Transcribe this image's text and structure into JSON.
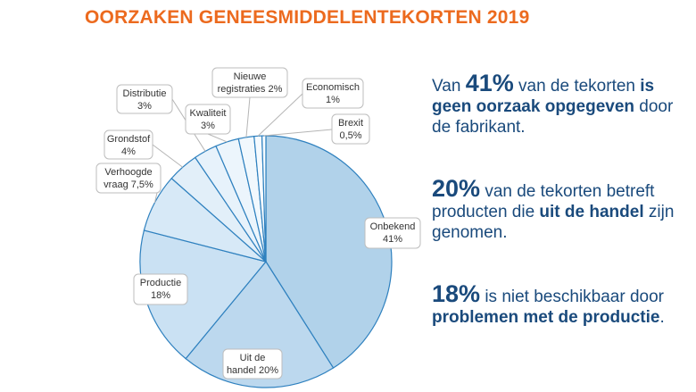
{
  "title": "OORZAKEN GENEESMIDDELENTEKORTEN 2019",
  "chart_data": {
    "type": "pie",
    "slices": [
      {
        "label": "Onbekend",
        "value_label": "41%",
        "value": 41,
        "color": "#b1d2ea"
      },
      {
        "label": "Uit de handel",
        "value_label": "20%",
        "value": 20,
        "color": "#bcd8ee"
      },
      {
        "label": "Productie",
        "value_label": "18%",
        "value": 18,
        "color": "#cae1f3"
      },
      {
        "label": "Verhoogde vraag",
        "value_label": "7,5%",
        "value": 7.5,
        "color": "#d7e9f7"
      },
      {
        "label": "Grondstof",
        "value_label": "4%",
        "value": 4,
        "color": "#e2eff9"
      },
      {
        "label": "Distributie",
        "value_label": "3%",
        "value": 3,
        "color": "#e7f2fb"
      },
      {
        "label": "Kwaliteit",
        "value_label": "3%",
        "value": 3,
        "color": "#ecf5fc"
      },
      {
        "label": "Nieuwe registraties",
        "value_label": "2%",
        "value": 2,
        "color": "#f1f8fd"
      },
      {
        "label": "Economisch",
        "value_label": "1%",
        "value": 1,
        "color": "#f5fafe"
      },
      {
        "label": "Brexit",
        "value_label": "0,5%",
        "value": 0.5,
        "color": "#f8fcff"
      }
    ],
    "callouts": [
      {
        "lines": [
          "Onbekend",
          "41%"
        ]
      },
      {
        "lines": [
          "Uit de",
          "handel 20%"
        ]
      },
      {
        "lines": [
          "Productie",
          "18%"
        ]
      },
      {
        "lines": [
          "Verhoogde",
          "vraag 7,5%"
        ]
      },
      {
        "lines": [
          "Grondstof",
          "4%"
        ]
      },
      {
        "lines": [
          "Distributie",
          "3%"
        ]
      },
      {
        "lines": [
          "Kwaliteit",
          "3%"
        ]
      },
      {
        "lines": [
          "Nieuwe",
          "registraties 2%"
        ]
      },
      {
        "lines": [
          "Economisch",
          "1%"
        ]
      },
      {
        "lines": [
          "Brexit",
          "0,5%"
        ]
      }
    ],
    "slice_outline_color": "#2f81bf"
  },
  "facts": {
    "f1": {
      "a": "Van ",
      "b": "41%",
      "c": " van de tekorten ",
      "d": "is ",
      "e": "geen oorzaak opgegeven",
      "f": " door de fabrikant."
    },
    "f2": {
      "a": "20%",
      "b": " van de tekorten betreft producten die ",
      "c": "uit de handel",
      "d": " zijn genomen."
    },
    "f3": {
      "a": "18%",
      "b": " is niet beschikbaar door ",
      "c": "problemen met de productie",
      "d": "."
    }
  },
  "colors": {
    "title": "#ec6a1e",
    "text": "#1a4a7c",
    "callout_border": "#bdbdbd"
  }
}
